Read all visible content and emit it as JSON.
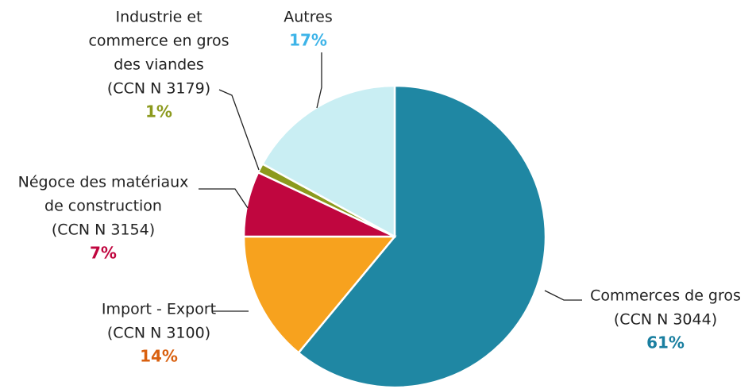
{
  "chart_data": {
    "type": "pie",
    "categories": [
      [
        "Commerces de gros",
        "(CCN N  3044)"
      ],
      [
        "Import - Export",
        "(CCN N  3100)"
      ],
      [
        "Négoce des matériaux",
        "de construction",
        "(CCN N  3154)"
      ],
      [
        "Industrie et",
        "commerce en gros",
        "des viandes",
        "(CCN N  3179)"
      ],
      [
        "Autres"
      ]
    ],
    "values": [
      61,
      14,
      7,
      1,
      17
    ],
    "value_labels": [
      "61%",
      "14%",
      "7%",
      "1%",
      "17%"
    ],
    "colors": [
      "#1f87a3",
      "#f7a21e",
      "#c0063f",
      "#8c9a1e",
      "#c9eef3"
    ],
    "label_colors": [
      "#1a7fa0",
      "#d9600f",
      "#c0063f",
      "#8c9a1e",
      "#3eb4e8"
    ]
  }
}
